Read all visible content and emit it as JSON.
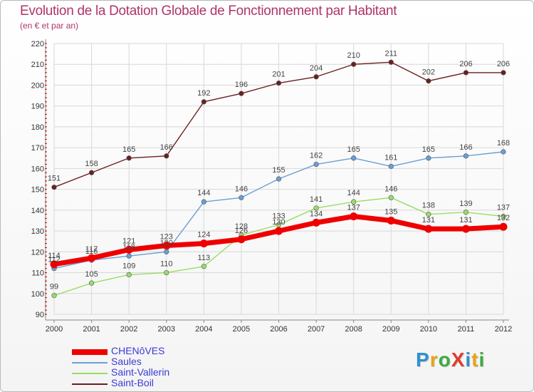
{
  "title": "Evolution de la Dotation Globale de Fonctionnement par Habitant",
  "subtitle": "(en € et par an)",
  "brand": "ProXiti",
  "brand_letters": [
    "P",
    "r",
    "o",
    "X",
    "i",
    "t",
    "i"
  ],
  "colors": {
    "title": "#b0346a",
    "axis_text": "#333333",
    "legend_text": "#3b3bd6",
    "tick_red": "#cc0000",
    "grid": "#d8d8d8",
    "brand_letter_colors": [
      "#2e8fd0",
      "#e8a317",
      "#3cab3c",
      "#e03c2e",
      "#2e8fd0",
      "#e8a317",
      "#3cab3c"
    ]
  },
  "chart_data": {
    "type": "line",
    "title": "Evolution de la Dotation Globale de Fonctionnement par Habitant",
    "subtitle": "(en € et par an)",
    "xlabel": "",
    "ylabel": "",
    "x": [
      "2000",
      "2001",
      "2002",
      "2003",
      "2004",
      "2005",
      "2006",
      "2007",
      "2008",
      "2009",
      "2010",
      "2011",
      "2012"
    ],
    "ylim": [
      90,
      220
    ],
    "yticks": [
      90,
      100,
      110,
      120,
      130,
      140,
      150,
      160,
      170,
      180,
      190,
      200,
      210,
      220
    ],
    "grid": true,
    "legend_position": "bottom-left",
    "series": [
      {
        "name": "CHENôVES",
        "color": "#ee0000",
        "weight": "thick",
        "values": [
          114,
          117,
          121,
          123,
          124,
          126,
          130,
          134,
          137,
          135,
          131,
          131,
          132
        ],
        "labels": [
          "114",
          "117",
          "121",
          "123",
          "124",
          "126",
          "130",
          "134",
          "137",
          "135",
          "131",
          "131",
          "132"
        ]
      },
      {
        "name": "Saules",
        "color": "#6a9fd4",
        "weight": "normal",
        "values": [
          112,
          116,
          118,
          120,
          144,
          146,
          155,
          162,
          165,
          161,
          165,
          166,
          168
        ],
        "labels": [
          "112",
          "116",
          "118",
          "120",
          "144",
          "146",
          "155",
          "162",
          "165",
          "161",
          "165",
          "166",
          "168"
        ]
      },
      {
        "name": "Saint-Vallerin",
        "color": "#99dd66",
        "weight": "normal",
        "values": [
          99,
          105,
          109,
          110,
          113,
          128,
          133,
          141,
          144,
          146,
          138,
          139,
          137
        ],
        "labels": [
          "99",
          "105",
          "109",
          "110",
          "113",
          "128",
          "133",
          "141",
          "144",
          "146",
          "138",
          "139",
          "137"
        ]
      },
      {
        "name": "Saint-Boil",
        "color": "#6b1f1f",
        "weight": "normal",
        "values": [
          151,
          158,
          165,
          166,
          192,
          196,
          201,
          204,
          210,
          211,
          202,
          206,
          206
        ],
        "labels": [
          "151",
          "158",
          "165",
          "166",
          "192",
          "196",
          "201",
          "204",
          "210",
          "211",
          "202",
          "206",
          "206"
        ]
      }
    ]
  }
}
